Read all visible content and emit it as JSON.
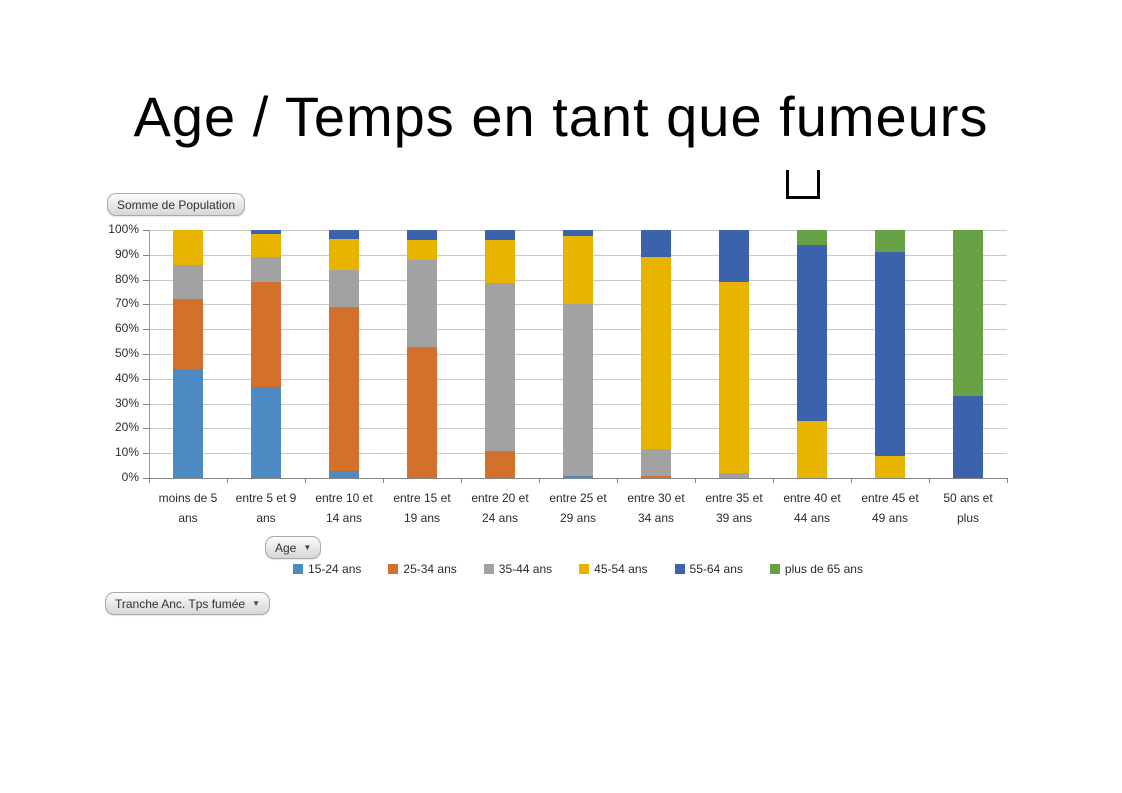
{
  "title": {
    "text": "Age / Temps en tant que fumeurs",
    "missing_glyph": "□"
  },
  "pivot_buttons": {
    "value_field": "Somme de Population",
    "axis_field": "Age",
    "filter_field": "Tranche Anc. Tps fumée",
    "dropdown_icon": "▼"
  },
  "chart_data": {
    "type": "bar",
    "subtype": "stacked-100-percent",
    "title": "Age / Temps en tant que fumeurs",
    "grid": true,
    "legend_position": "bottom",
    "ylim": [
      0,
      100
    ],
    "y_ticks": [
      "0%",
      "10%",
      "20%",
      "30%",
      "40%",
      "50%",
      "60%",
      "70%",
      "80%",
      "90%",
      "100%"
    ],
    "categories": [
      "moins de 5 ans",
      "entre 5 et 9 ans",
      "entre 10 et 14 ans",
      "entre 15 et 19 ans",
      "entre 20 et 24 ans",
      "entre 25 et 29 ans",
      "entre 30 et 34 ans",
      "entre 35 et 39 ans",
      "entre 40 et 44 ans",
      "entre 45 et 49 ans",
      "50 ans et plus"
    ],
    "category_lines": [
      [
        "moins de 5",
        "ans"
      ],
      [
        "entre 5 et 9",
        "ans"
      ],
      [
        "entre 10 et",
        "14 ans"
      ],
      [
        "entre 15 et",
        "19 ans"
      ],
      [
        "entre 20 et",
        "24 ans"
      ],
      [
        "entre 25 et",
        "29 ans"
      ],
      [
        "entre 30 et",
        "34 ans"
      ],
      [
        "entre 35 et",
        "39 ans"
      ],
      [
        "entre 40 et",
        "44 ans"
      ],
      [
        "entre 45 et",
        "49 ans"
      ],
      [
        "50 ans et",
        "plus"
      ]
    ],
    "series": [
      {
        "name": "15-24 ans",
        "color": "#4d89c3",
        "values": [
          44,
          36.5,
          3,
          0,
          0,
          1,
          0,
          0,
          0,
          0,
          0
        ]
      },
      {
        "name": "25-34 ans",
        "color": "#d2702c",
        "values": [
          28,
          42.5,
          66,
          53,
          11,
          0,
          1,
          0,
          0,
          0,
          0
        ]
      },
      {
        "name": "35-44 ans",
        "color": "#a2a2a2",
        "values": [
          14,
          10,
          15,
          35,
          67.5,
          69,
          10.5,
          2,
          0,
          0,
          0
        ]
      },
      {
        "name": "45-54 ans",
        "color": "#e9b400",
        "values": [
          14,
          9.5,
          12.5,
          8,
          17.5,
          27.5,
          77.5,
          77,
          23,
          9,
          0
        ]
      },
      {
        "name": "55-64 ans",
        "color": "#3c62ac",
        "values": [
          0,
          1.5,
          3.5,
          4,
          4,
          2.5,
          11,
          21,
          71,
          82,
          33
        ]
      },
      {
        "name": "plus de 65 ans",
        "color": "#67a045",
        "values": [
          0,
          0,
          0,
          0,
          0,
          0,
          0,
          0,
          6,
          9,
          67
        ]
      }
    ],
    "axis_colors": {
      "gridline": "#c9c9c9",
      "axis": "#848484"
    }
  }
}
